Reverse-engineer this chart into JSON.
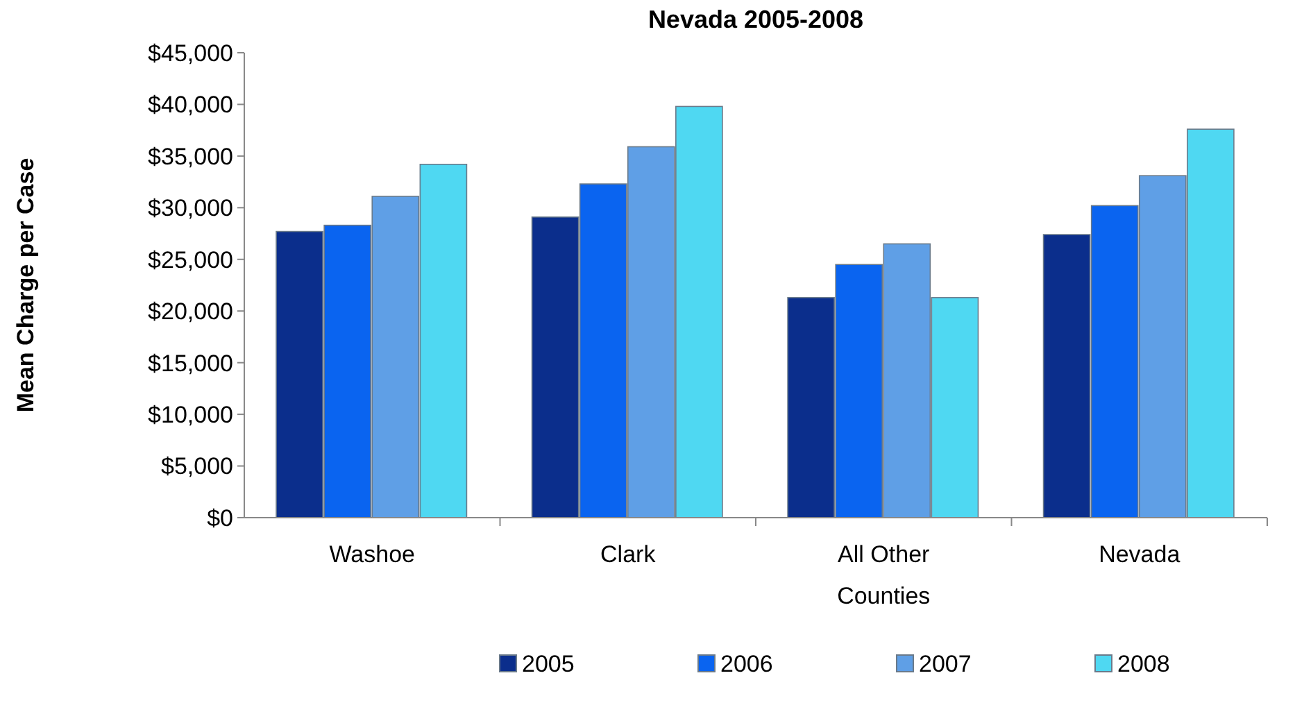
{
  "chart_data": {
    "type": "bar",
    "title": "Nevada 2005-2008",
    "ylabel": "Mean Charge per Case",
    "categories": [
      "Washoe",
      "Clark",
      "All Other Counties",
      "Nevada"
    ],
    "series": [
      {
        "name": "2005",
        "color": "#0b2e8c",
        "values": [
          27700,
          29100,
          21300,
          27400
        ]
      },
      {
        "name": "2006",
        "color": "#0a64f0",
        "values": [
          28300,
          32300,
          24500,
          30200
        ]
      },
      {
        "name": "2007",
        "color": "#5f9fe6",
        "values": [
          31100,
          35900,
          26500,
          33100
        ]
      },
      {
        "name": "2008",
        "color": "#4fd8f2",
        "values": [
          34200,
          39800,
          21300,
          37600
        ]
      }
    ],
    "ylim": [
      0,
      45000
    ],
    "yticks": [
      {
        "value": 0,
        "label": "$0"
      },
      {
        "value": 5000,
        "label": "$5,000"
      },
      {
        "value": 10000,
        "label": "$10,000"
      },
      {
        "value": 15000,
        "label": "$15,000"
      },
      {
        "value": 20000,
        "label": "$20,000"
      },
      {
        "value": 25000,
        "label": "$25,000"
      },
      {
        "value": 30000,
        "label": "$30,000"
      },
      {
        "value": 35000,
        "label": "$35,000"
      },
      {
        "value": 40000,
        "label": "$40,000"
      },
      {
        "value": 45000,
        "label": "$45,000"
      }
    ],
    "grid": false,
    "legend": "bottom"
  }
}
